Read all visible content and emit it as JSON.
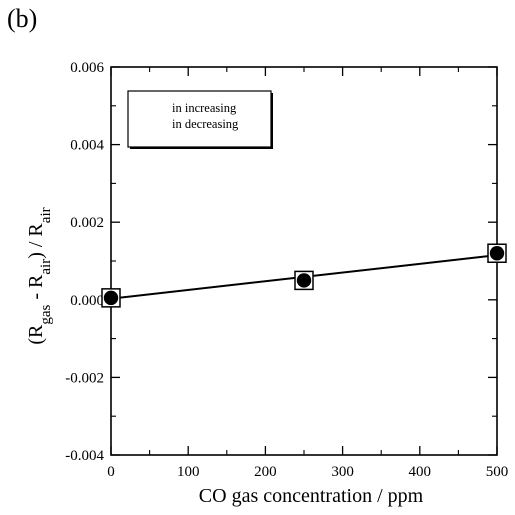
{
  "panel_label": "(b)",
  "chart_data": {
    "type": "scatter",
    "xlabel": "CO gas concentration / ppm",
    "ylabel": {
      "parts": [
        {
          "t": "(R",
          "sub": false
        },
        {
          "t": "gas",
          "sub": true
        },
        {
          "t": " - R",
          "sub": false
        },
        {
          "t": "air",
          "sub": true
        },
        {
          "t": ") / R",
          "sub": false
        },
        {
          "t": "air",
          "sub": true
        }
      ]
    },
    "xlim": [
      0,
      500
    ],
    "ylim": [
      -0.004,
      0.006
    ],
    "x_ticks": [
      {
        "v": 0,
        "label": "0"
      },
      {
        "v": 100,
        "label": "100"
      },
      {
        "v": 200,
        "label": "200"
      },
      {
        "v": 300,
        "label": "300"
      },
      {
        "v": 400,
        "label": "400"
      },
      {
        "v": 500,
        "label": "500"
      }
    ],
    "y_ticks": [
      {
        "v": -0.004,
        "label": "-0.004"
      },
      {
        "v": -0.002,
        "label": "-0.002"
      },
      {
        "v": 0.0,
        "label": "0.000"
      },
      {
        "v": 0.002,
        "label": "0.002"
      },
      {
        "v": 0.004,
        "label": "0.004"
      },
      {
        "v": 0.006,
        "label": "0.006"
      }
    ],
    "x_minor_ticks": [
      50,
      150,
      250,
      350,
      450
    ],
    "y_minor_ticks": [
      -0.003,
      -0.001,
      0.001,
      0.003,
      0.005
    ],
    "grid": false,
    "series": [
      {
        "name": "in increasing",
        "marker": "open-square",
        "x": [
          0,
          250,
          500
        ],
        "y": [
          5e-05,
          0.0005,
          0.0012
        ]
      },
      {
        "name": "in decreasing",
        "marker": "filled-circle",
        "x": [
          0,
          250,
          500
        ],
        "y": [
          5e-05,
          0.0005,
          0.0012
        ]
      }
    ],
    "fit_line": {
      "x": [
        0,
        500
      ],
      "y": [
        3e-05,
        0.00115
      ]
    },
    "legend": {
      "placement": "top-left"
    }
  }
}
